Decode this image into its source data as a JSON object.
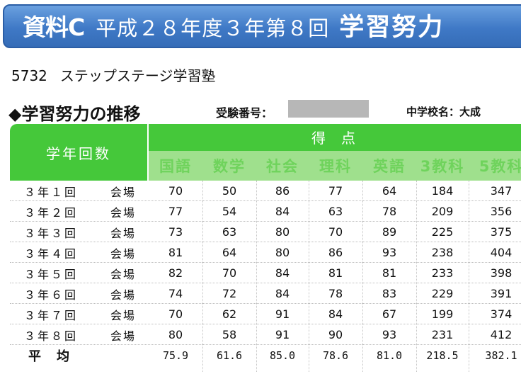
{
  "banner": {
    "label": "資料C",
    "exam": "平成２８年度３年第８回",
    "title": "学習努力"
  },
  "school": {
    "code": "5732",
    "name": "ステップステージ学習塾"
  },
  "section_title": "◆学習努力の推移",
  "exam_number_label": "受験番号：",
  "junior_high_label": "中学校名：大成",
  "table": {
    "row_header": "学年回数",
    "group_header": "得点",
    "subjects": [
      "国語",
      "数学",
      "社会",
      "理科",
      "英語",
      "3教科",
      "5教科"
    ],
    "rows": [
      {
        "label": "３年１回",
        "venue": "会場",
        "values": [
          "70",
          "50",
          "86",
          "77",
          "64",
          "184",
          "347"
        ]
      },
      {
        "label": "３年２回",
        "venue": "会場",
        "values": [
          "77",
          "54",
          "84",
          "63",
          "78",
          "209",
          "356"
        ]
      },
      {
        "label": "３年３回",
        "venue": "会場",
        "values": [
          "73",
          "63",
          "80",
          "70",
          "89",
          "225",
          "375"
        ]
      },
      {
        "label": "３年４回",
        "venue": "会場",
        "values": [
          "81",
          "64",
          "80",
          "86",
          "93",
          "238",
          "404"
        ]
      },
      {
        "label": "３年５回",
        "venue": "会場",
        "values": [
          "82",
          "70",
          "84",
          "81",
          "81",
          "233",
          "398"
        ]
      },
      {
        "label": "３年６回",
        "venue": "会場",
        "values": [
          "74",
          "72",
          "84",
          "78",
          "83",
          "229",
          "391"
        ]
      },
      {
        "label": "３年７回",
        "venue": "会場",
        "values": [
          "70",
          "62",
          "91",
          "84",
          "67",
          "199",
          "374"
        ]
      },
      {
        "label": "３年８回",
        "venue": "会場",
        "values": [
          "80",
          "58",
          "91",
          "90",
          "93",
          "231",
          "412"
        ]
      }
    ],
    "average": {
      "label": "平均",
      "values": [
        "75.9",
        "61.6",
        "85.0",
        "78.6",
        "81.0",
        "218.5",
        "382.1"
      ]
    }
  }
}
